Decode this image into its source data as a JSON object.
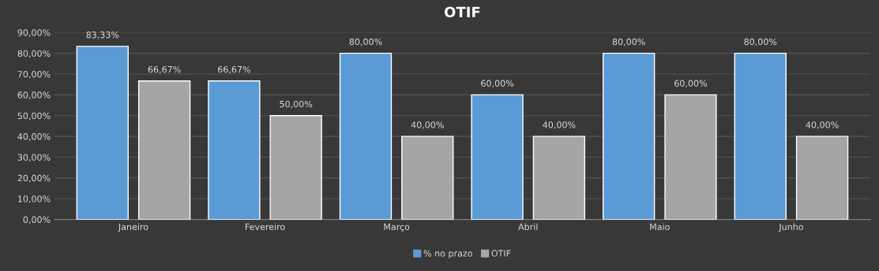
{
  "chart_data": {
    "type": "bar",
    "title": "OTIF",
    "categories": [
      "Janeiro",
      "Fevereiro",
      "Março",
      "Abril",
      "Maio",
      "Junho"
    ],
    "series": [
      {
        "name": "% no prazo",
        "color": "#5b9bd5",
        "values": [
          83.33,
          66.67,
          80,
          60,
          80,
          80
        ],
        "value_labels": [
          "83,33%",
          "66,67%",
          "80,00%",
          "60,00%",
          "80,00%",
          "80,00%"
        ]
      },
      {
        "name": "OTIF",
        "color": "#a5a5a5",
        "values": [
          66.67,
          50,
          40,
          40,
          60,
          40
        ],
        "value_labels": [
          "66,67%",
          "50,00%",
          "40,00%",
          "40,00%",
          "60,00%",
          "40,00%"
        ]
      }
    ],
    "ylim": [
      0,
      90
    ],
    "yticks": [
      {
        "value": 0,
        "label": "0,00%"
      },
      {
        "value": 10,
        "label": "10,00%"
      },
      {
        "value": 20,
        "label": "20,00%"
      },
      {
        "value": 30,
        "label": "30,00%"
      },
      {
        "value": 40,
        "label": "40,00%"
      },
      {
        "value": 50,
        "label": "50,00%"
      },
      {
        "value": 60,
        "label": "60,00%"
      },
      {
        "value": 70,
        "label": "70,00%"
      },
      {
        "value": 80,
        "label": "80,00%"
      },
      {
        "value": 90,
        "label": "90,00%"
      }
    ],
    "grid": "y",
    "legend": "bottom"
  }
}
